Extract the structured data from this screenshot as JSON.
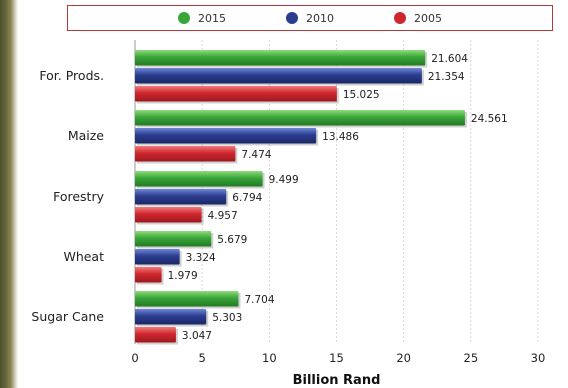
{
  "chart_data": {
    "type": "bar",
    "orientation": "horizontal",
    "categories": [
      "For. Prods.",
      "Maize",
      "Forestry",
      "Wheat",
      "Sugar Cane"
    ],
    "series": [
      {
        "name": "2015",
        "color": "#3aa63a",
        "values": [
          21.604,
          24.561,
          9.499,
          5.679,
          7.704
        ]
      },
      {
        "name": "2010",
        "color": "#2b3d8f",
        "values": [
          21.354,
          13.486,
          6.794,
          3.324,
          5.303
        ]
      },
      {
        "name": "2005",
        "color": "#d0262e",
        "values": [
          15.025,
          7.474,
          4.957,
          1.979,
          3.047
        ]
      }
    ],
    "value_labels": [
      [
        "21.604",
        "24.561",
        "9.499",
        "5.679",
        "7.704"
      ],
      [
        "21.354",
        "13.486",
        "6.794",
        "3.324",
        "5.303"
      ],
      [
        "15.025",
        "7.474",
        "4.957",
        "1.979",
        "3.047"
      ]
    ],
    "xlabel": "Billion Rand",
    "ylabel": "",
    "xlim": [
      0,
      30
    ],
    "xticks": [
      0,
      5,
      10,
      15,
      20,
      25,
      30
    ],
    "grid": "vertical",
    "legend": "top"
  }
}
